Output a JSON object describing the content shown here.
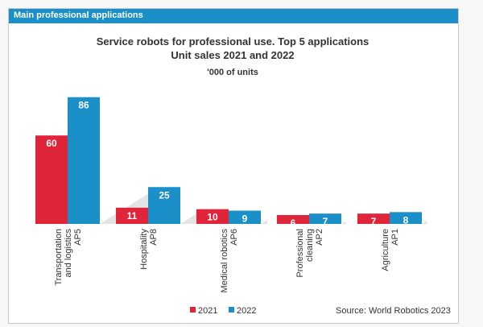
{
  "panel": {
    "header": "Main professional applications",
    "source": "Source: World Robotics 2023"
  },
  "colors": {
    "header_bg": "#1a8fc8",
    "series_2021": "#e0243a",
    "series_2022": "#1a8fc8"
  },
  "chart_data": {
    "type": "bar",
    "title": "Service robots for professional use. Top 5 applications",
    "subtitle": "Unit sales 2021 and 2022",
    "unit": "'000 of units",
    "categories": [
      [
        "Transportation",
        "and logistics",
        "AP5"
      ],
      [
        "Hospitality",
        "AP8"
      ],
      [
        "Medical robotics",
        "AP6"
      ],
      [
        "Professional",
        "cleaning",
        "AP2"
      ],
      [
        "Agriculture",
        "AP1"
      ]
    ],
    "series": [
      {
        "name": "2021",
        "values": [
          60,
          11,
          10,
          6,
          7
        ]
      },
      {
        "name": "2022",
        "values": [
          86,
          25,
          9,
          7,
          8
        ]
      }
    ],
    "ylim": [
      0,
      90
    ],
    "legend": "bottom-center",
    "grid": false
  }
}
